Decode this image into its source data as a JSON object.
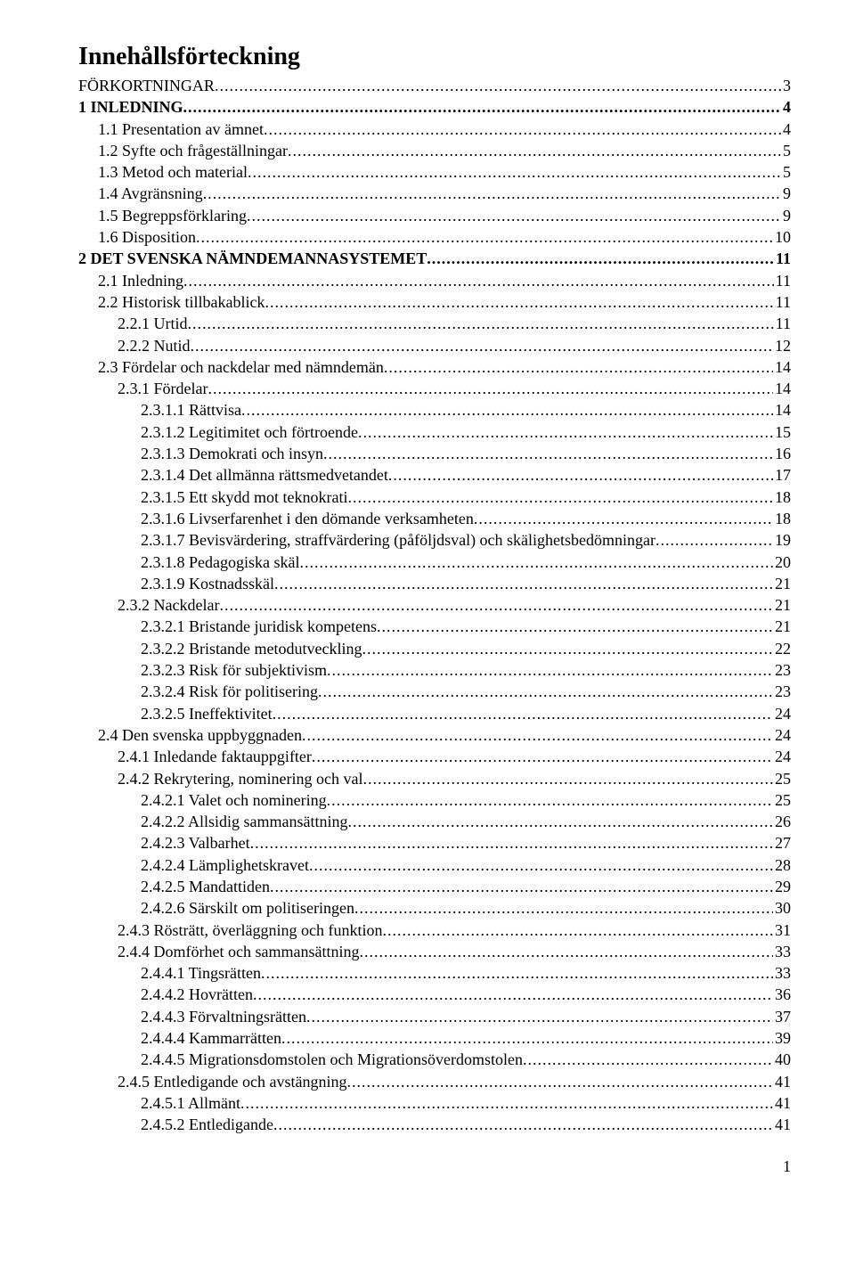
{
  "title": "Innehållsförteckning",
  "page_number": "1",
  "toc": [
    {
      "label": " FÖRKORTNINGAR",
      "page": "3",
      "indent": 0,
      "bold": false
    },
    {
      "label": " 1 INLEDNING",
      "page": "4",
      "indent": 0,
      "bold": true
    },
    {
      "label": " 1.1 Presentation av ämnet",
      "page": "4",
      "indent": 1,
      "bold": false
    },
    {
      "label": " 1.2 Syfte och frågeställningar",
      "page": "5",
      "indent": 1,
      "bold": false
    },
    {
      "label": " 1.3 Metod och material",
      "page": "5",
      "indent": 1,
      "bold": false
    },
    {
      "label": " 1.4 Avgränsning",
      "page": "9",
      "indent": 1,
      "bold": false
    },
    {
      "label": " 1.5 Begreppsförklaring",
      "page": "9",
      "indent": 1,
      "bold": false
    },
    {
      "label": " 1.6 Disposition",
      "page": "10",
      "indent": 1,
      "bold": false
    },
    {
      "label": " 2 DET SVENSKA NÄMNDEMANNASYSTEMET",
      "page": "11",
      "indent": 0,
      "bold": true
    },
    {
      "label": " 2.1 Inledning",
      "page": "11",
      "indent": 1,
      "bold": false
    },
    {
      "label": " 2.2 Historisk tillbakablick",
      "page": "11",
      "indent": 1,
      "bold": false
    },
    {
      "label": " 2.2.1 Urtid",
      "page": "11",
      "indent": 2,
      "bold": false
    },
    {
      "label": " 2.2.2 Nutid",
      "page": "12",
      "indent": 2,
      "bold": false
    },
    {
      "label": " 2.3 Fördelar och nackdelar med nämndemän",
      "page": "14",
      "indent": 1,
      "bold": false
    },
    {
      "label": " 2.3.1 Fördelar",
      "page": "14",
      "indent": 2,
      "bold": false
    },
    {
      "label": " 2.3.1.1 Rättvisa",
      "page": "14",
      "indent": 3,
      "bold": false
    },
    {
      "label": " 2.3.1.2 Legitimitet och förtroende",
      "page": "15",
      "indent": 3,
      "bold": false
    },
    {
      "label": " 2.3.1.3 Demokrati och insyn",
      "page": "16",
      "indent": 3,
      "bold": false
    },
    {
      "label": " 2.3.1.4 Det allmänna rättsmedvetandet",
      "page": "17",
      "indent": 3,
      "bold": false
    },
    {
      "label": " 2.3.1.5 Ett skydd mot teknokrati",
      "page": "18",
      "indent": 3,
      "bold": false
    },
    {
      "label": " 2.3.1.6 Livserfarenhet i den dömande verksamheten",
      "page": "18",
      "indent": 3,
      "bold": false
    },
    {
      "label": " 2.3.1.7 Bevisvärdering, straffvärdering (påföljdsval) och skälighetsbedömningar",
      "page": "19",
      "indent": 3,
      "bold": false
    },
    {
      "label": " 2.3.1.8 Pedagogiska skäl",
      "page": "20",
      "indent": 3,
      "bold": false
    },
    {
      "label": " 2.3.1.9 Kostnadsskäl",
      "page": "21",
      "indent": 3,
      "bold": false
    },
    {
      "label": " 2.3.2 Nackdelar",
      "page": "21",
      "indent": 2,
      "bold": false
    },
    {
      "label": " 2.3.2.1 Bristande juridisk kompetens",
      "page": "21",
      "indent": 3,
      "bold": false
    },
    {
      "label": " 2.3.2.2 Bristande metodutveckling",
      "page": "22",
      "indent": 3,
      "bold": false
    },
    {
      "label": " 2.3.2.3 Risk för subjektivism",
      "page": "23",
      "indent": 3,
      "bold": false
    },
    {
      "label": " 2.3.2.4 Risk för politisering",
      "page": "23",
      "indent": 3,
      "bold": false
    },
    {
      "label": " 2.3.2.5 Ineffektivitet",
      "page": "24",
      "indent": 3,
      "bold": false
    },
    {
      "label": " 2.4 Den svenska uppbyggnaden",
      "page": "24",
      "indent": 1,
      "bold": false
    },
    {
      "label": " 2.4.1 Inledande faktauppgifter",
      "page": "24",
      "indent": 2,
      "bold": false
    },
    {
      "label": " 2.4.2 Rekrytering, nominering och val",
      "page": "25",
      "indent": 2,
      "bold": false
    },
    {
      "label": " 2.4.2.1 Valet och nominering",
      "page": "25",
      "indent": 3,
      "bold": false
    },
    {
      "label": " 2.4.2.2 Allsidig sammansättning",
      "page": "26",
      "indent": 3,
      "bold": false
    },
    {
      "label": " 2.4.2.3 Valbarhet",
      "page": "27",
      "indent": 3,
      "bold": false
    },
    {
      "label": " 2.4.2.4 Lämplighetskravet",
      "page": "28",
      "indent": 3,
      "bold": false
    },
    {
      "label": " 2.4.2.5 Mandattiden",
      "page": "29",
      "indent": 3,
      "bold": false
    },
    {
      "label": " 2.4.2.6 Särskilt om politiseringen",
      "page": "30",
      "indent": 3,
      "bold": false
    },
    {
      "label": " 2.4.3 Rösträtt, överläggning och funktion",
      "page": "31",
      "indent": 2,
      "bold": false
    },
    {
      "label": " 2.4.4 Domförhet och sammansättning",
      "page": "33",
      "indent": 2,
      "bold": false
    },
    {
      "label": " 2.4.4.1 Tingsrätten",
      "page": "33",
      "indent": 3,
      "bold": false
    },
    {
      "label": " 2.4.4.2 Hovrätten",
      "page": "36",
      "indent": 3,
      "bold": false
    },
    {
      "label": " 2.4.4.3 Förvaltningsrätten",
      "page": "37",
      "indent": 3,
      "bold": false
    },
    {
      "label": " 2.4.4.4 Kammarrätten",
      "page": "39",
      "indent": 3,
      "bold": false
    },
    {
      "label": " 2.4.4.5 Migrationsdomstolen och Migrationsöverdomstolen",
      "page": "40",
      "indent": 3,
      "bold": false
    },
    {
      "label": " 2.4.5 Entledigande och avstängning",
      "page": "41",
      "indent": 2,
      "bold": false
    },
    {
      "label": " 2.4.5.1 Allmänt",
      "page": "41",
      "indent": 3,
      "bold": false
    },
    {
      "label": " 2.4.5.2 Entledigande",
      "page": "41",
      "indent": 3,
      "bold": false
    }
  ]
}
